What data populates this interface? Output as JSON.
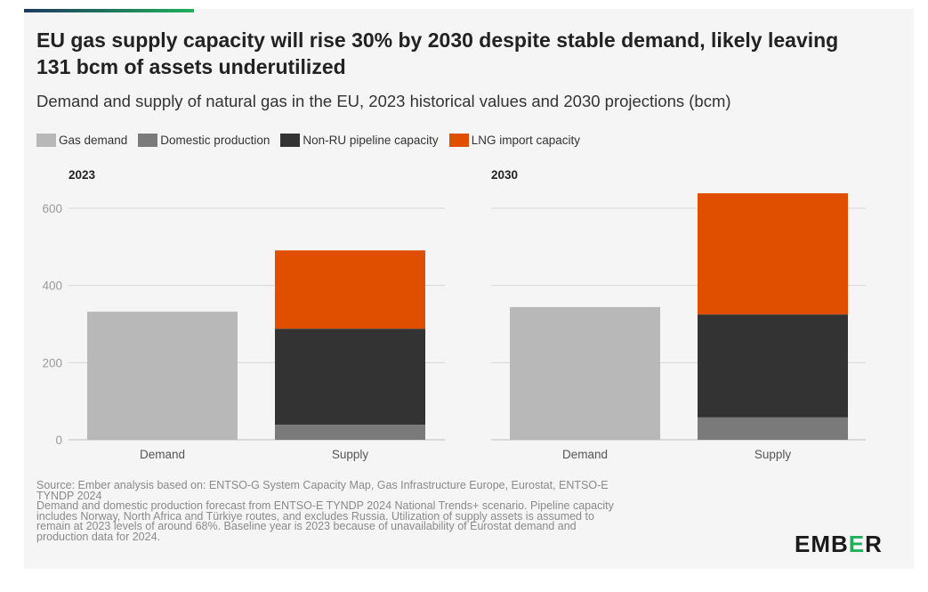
{
  "title": "EU gas supply capacity will rise 30% by 2030 despite stable demand, likely leaving 131 bcm of assets underutilized",
  "subtitle": "Demand and supply of natural gas in the EU, 2023 historical values and 2030 projections (bcm)",
  "colors": {
    "gas_demand": "#b8b8b8",
    "domestic_production": "#7a7a7a",
    "non_ru_pipeline": "#333333",
    "lng_import": "#e04e00",
    "accent_green": "#20b05a",
    "accent_navy": "#1e3a5f"
  },
  "legend": [
    {
      "label": "Gas demand",
      "color": "#b8b8b8"
    },
    {
      "label": "Domestic production",
      "color": "#7a7a7a"
    },
    {
      "label": "Non-RU pipeline capacity",
      "color": "#333333"
    },
    {
      "label": "LNG import capacity",
      "color": "#e04e00"
    }
  ],
  "chart_data": [
    {
      "type": "bar",
      "stacked": true,
      "panel_title": "2023",
      "categories": [
        "Demand",
        "Supply"
      ],
      "series": [
        {
          "name": "Gas demand",
          "values": [
            332,
            0
          ]
        },
        {
          "name": "Domestic production",
          "values": [
            0,
            39
          ]
        },
        {
          "name": "Non-RU pipeline capacity",
          "values": [
            0,
            249
          ]
        },
        {
          "name": "LNG import capacity",
          "values": [
            0,
            203
          ]
        }
      ],
      "yticks": [
        0,
        200,
        400,
        600
      ],
      "ylim": [
        0,
        600
      ],
      "grid": true
    },
    {
      "type": "bar",
      "stacked": true,
      "panel_title": "2030",
      "categories": [
        "Demand",
        "Supply"
      ],
      "series": [
        {
          "name": "Gas demand",
          "values": [
            344,
            0
          ]
        },
        {
          "name": "Domestic production",
          "values": [
            0,
            58
          ]
        },
        {
          "name": "Non-RU pipeline capacity",
          "values": [
            0,
            267
          ]
        },
        {
          "name": "LNG import capacity",
          "values": [
            0,
            314
          ]
        }
      ],
      "yticks": [
        0,
        200,
        400,
        600
      ],
      "ylim": [
        0,
        600
      ],
      "grid": true
    }
  ],
  "source_lines": [
    "Source: Ember analysis based on: ENTSO-G System Capacity Map, Gas Infrastructure Europe, Eurostat, ENTSO-E",
    "TYNDP 2024",
    "Demand and domestic production forecast from ENTSO-E TYNDP 2024 National Trends+ scenario. Pipeline capacity",
    "includes Norway, North Africa and Türkiye routes, and excludes Russia. Utilization of supply assets is assumed to",
    "remain at 2023 levels of around 68%. Baseline year is 2023 because of unavailability of Eurostat demand and",
    "production data for 2024."
  ],
  "logo": {
    "pre": "EMB",
    "mid": "E",
    "post": "R"
  }
}
